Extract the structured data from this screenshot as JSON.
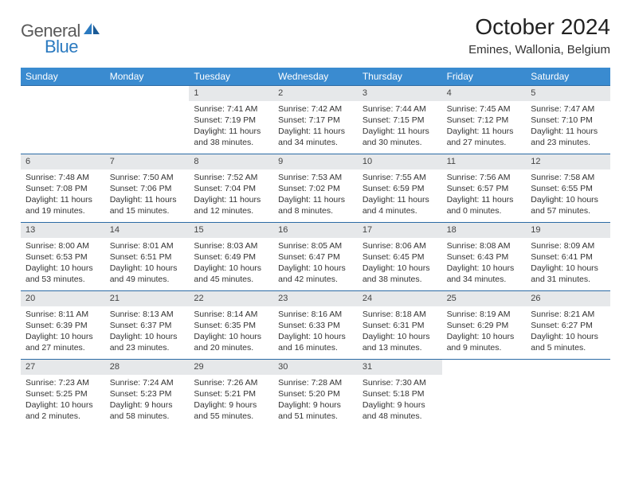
{
  "theme": {
    "header_bg": "#3a8bd0",
    "header_text": "#ffffff",
    "daynum_bg": "#e6e8ea",
    "border_color": "#2b6aa5",
    "logo_gray": "#5a5a5a",
    "logo_blue": "#2b7ac0",
    "text": "#333333",
    "title_fontsize": 28,
    "subtitle_fontsize": 15,
    "header_fontsize": 12,
    "cell_fontsize": 10.5
  },
  "logo": {
    "part1": "General",
    "part2": "Blue"
  },
  "title": "October 2024",
  "subtitle": "Emines, Wallonia, Belgium",
  "weekdays": [
    "Sunday",
    "Monday",
    "Tuesday",
    "Wednesday",
    "Thursday",
    "Friday",
    "Saturday"
  ],
  "leading_blanks": 2,
  "days": [
    {
      "n": "1",
      "sr": "Sunrise: 7:41 AM",
      "ss": "Sunset: 7:19 PM",
      "dl": "Daylight: 11 hours and 38 minutes."
    },
    {
      "n": "2",
      "sr": "Sunrise: 7:42 AM",
      "ss": "Sunset: 7:17 PM",
      "dl": "Daylight: 11 hours and 34 minutes."
    },
    {
      "n": "3",
      "sr": "Sunrise: 7:44 AM",
      "ss": "Sunset: 7:15 PM",
      "dl": "Daylight: 11 hours and 30 minutes."
    },
    {
      "n": "4",
      "sr": "Sunrise: 7:45 AM",
      "ss": "Sunset: 7:12 PM",
      "dl": "Daylight: 11 hours and 27 minutes."
    },
    {
      "n": "5",
      "sr": "Sunrise: 7:47 AM",
      "ss": "Sunset: 7:10 PM",
      "dl": "Daylight: 11 hours and 23 minutes."
    },
    {
      "n": "6",
      "sr": "Sunrise: 7:48 AM",
      "ss": "Sunset: 7:08 PM",
      "dl": "Daylight: 11 hours and 19 minutes."
    },
    {
      "n": "7",
      "sr": "Sunrise: 7:50 AM",
      "ss": "Sunset: 7:06 PM",
      "dl": "Daylight: 11 hours and 15 minutes."
    },
    {
      "n": "8",
      "sr": "Sunrise: 7:52 AM",
      "ss": "Sunset: 7:04 PM",
      "dl": "Daylight: 11 hours and 12 minutes."
    },
    {
      "n": "9",
      "sr": "Sunrise: 7:53 AM",
      "ss": "Sunset: 7:02 PM",
      "dl": "Daylight: 11 hours and 8 minutes."
    },
    {
      "n": "10",
      "sr": "Sunrise: 7:55 AM",
      "ss": "Sunset: 6:59 PM",
      "dl": "Daylight: 11 hours and 4 minutes."
    },
    {
      "n": "11",
      "sr": "Sunrise: 7:56 AM",
      "ss": "Sunset: 6:57 PM",
      "dl": "Daylight: 11 hours and 0 minutes."
    },
    {
      "n": "12",
      "sr": "Sunrise: 7:58 AM",
      "ss": "Sunset: 6:55 PM",
      "dl": "Daylight: 10 hours and 57 minutes."
    },
    {
      "n": "13",
      "sr": "Sunrise: 8:00 AM",
      "ss": "Sunset: 6:53 PM",
      "dl": "Daylight: 10 hours and 53 minutes."
    },
    {
      "n": "14",
      "sr": "Sunrise: 8:01 AM",
      "ss": "Sunset: 6:51 PM",
      "dl": "Daylight: 10 hours and 49 minutes."
    },
    {
      "n": "15",
      "sr": "Sunrise: 8:03 AM",
      "ss": "Sunset: 6:49 PM",
      "dl": "Daylight: 10 hours and 45 minutes."
    },
    {
      "n": "16",
      "sr": "Sunrise: 8:05 AM",
      "ss": "Sunset: 6:47 PM",
      "dl": "Daylight: 10 hours and 42 minutes."
    },
    {
      "n": "17",
      "sr": "Sunrise: 8:06 AM",
      "ss": "Sunset: 6:45 PM",
      "dl": "Daylight: 10 hours and 38 minutes."
    },
    {
      "n": "18",
      "sr": "Sunrise: 8:08 AM",
      "ss": "Sunset: 6:43 PM",
      "dl": "Daylight: 10 hours and 34 minutes."
    },
    {
      "n": "19",
      "sr": "Sunrise: 8:09 AM",
      "ss": "Sunset: 6:41 PM",
      "dl": "Daylight: 10 hours and 31 minutes."
    },
    {
      "n": "20",
      "sr": "Sunrise: 8:11 AM",
      "ss": "Sunset: 6:39 PM",
      "dl": "Daylight: 10 hours and 27 minutes."
    },
    {
      "n": "21",
      "sr": "Sunrise: 8:13 AM",
      "ss": "Sunset: 6:37 PM",
      "dl": "Daylight: 10 hours and 23 minutes."
    },
    {
      "n": "22",
      "sr": "Sunrise: 8:14 AM",
      "ss": "Sunset: 6:35 PM",
      "dl": "Daylight: 10 hours and 20 minutes."
    },
    {
      "n": "23",
      "sr": "Sunrise: 8:16 AM",
      "ss": "Sunset: 6:33 PM",
      "dl": "Daylight: 10 hours and 16 minutes."
    },
    {
      "n": "24",
      "sr": "Sunrise: 8:18 AM",
      "ss": "Sunset: 6:31 PM",
      "dl": "Daylight: 10 hours and 13 minutes."
    },
    {
      "n": "25",
      "sr": "Sunrise: 8:19 AM",
      "ss": "Sunset: 6:29 PM",
      "dl": "Daylight: 10 hours and 9 minutes."
    },
    {
      "n": "26",
      "sr": "Sunrise: 8:21 AM",
      "ss": "Sunset: 6:27 PM",
      "dl": "Daylight: 10 hours and 5 minutes."
    },
    {
      "n": "27",
      "sr": "Sunrise: 7:23 AM",
      "ss": "Sunset: 5:25 PM",
      "dl": "Daylight: 10 hours and 2 minutes."
    },
    {
      "n": "28",
      "sr": "Sunrise: 7:24 AM",
      "ss": "Sunset: 5:23 PM",
      "dl": "Daylight: 9 hours and 58 minutes."
    },
    {
      "n": "29",
      "sr": "Sunrise: 7:26 AM",
      "ss": "Sunset: 5:21 PM",
      "dl": "Daylight: 9 hours and 55 minutes."
    },
    {
      "n": "30",
      "sr": "Sunrise: 7:28 AM",
      "ss": "Sunset: 5:20 PM",
      "dl": "Daylight: 9 hours and 51 minutes."
    },
    {
      "n": "31",
      "sr": "Sunrise: 7:30 AM",
      "ss": "Sunset: 5:18 PM",
      "dl": "Daylight: 9 hours and 48 minutes."
    }
  ],
  "trailing_blanks": 2
}
